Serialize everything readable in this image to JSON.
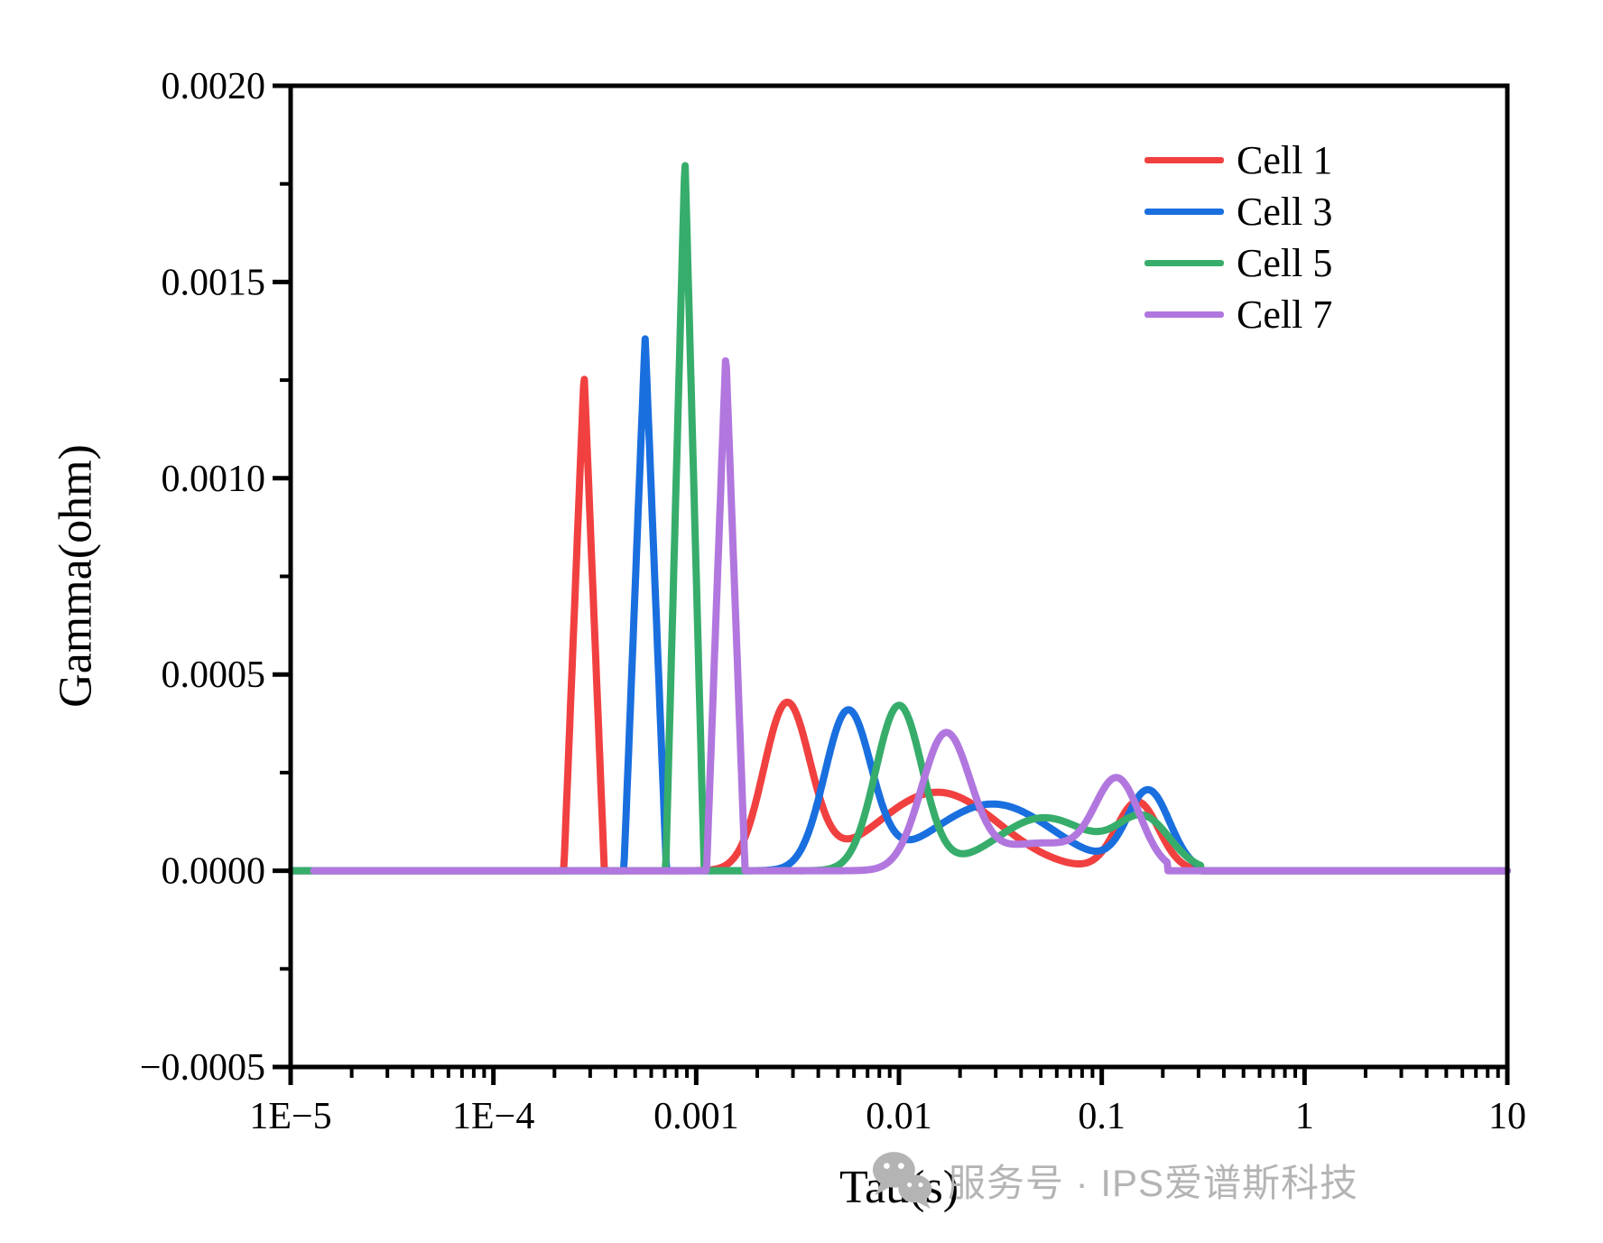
{
  "legend": {
    "items": [
      {
        "label": "Cell 1",
        "color": "#F14040"
      },
      {
        "label": "Cell 3",
        "color": "#1A6FDF"
      },
      {
        "label": "Cell 5",
        "color": "#37AD6B"
      },
      {
        "label": "Cell 7",
        "color": "#B177DE"
      }
    ]
  },
  "watermark": {
    "icon": "wechat-icon",
    "text": "服务号 · IPS爱谱斯科技",
    "color": "#b4b4b4"
  },
  "chart_data": {
    "type": "line",
    "title": "",
    "xlabel": "Tau(s)",
    "ylabel": "Gamma(ohm)",
    "xscale": "log",
    "xlim": [
      1e-05,
      10
    ],
    "ylim": [
      -0.0005,
      0.002
    ],
    "grid": false,
    "legend_position": "top-right",
    "x_ticks": [
      {
        "value": 1e-05,
        "label": "1E−5"
      },
      {
        "value": 0.0001,
        "label": "1E−4"
      },
      {
        "value": 0.001,
        "label": "0.001"
      },
      {
        "value": 0.01,
        "label": "0.01"
      },
      {
        "value": 0.1,
        "label": "0.1"
      },
      {
        "value": 1,
        "label": "1"
      },
      {
        "value": 10,
        "label": "10"
      }
    ],
    "y_ticks": [
      {
        "value": 0.002,
        "label": "0.0020"
      },
      {
        "value": 0.0015,
        "label": "0.0015"
      },
      {
        "value": 0.001,
        "label": "0.0010"
      },
      {
        "value": 0.0005,
        "label": "0.0005"
      },
      {
        "value": 0.0,
        "label": "0.0000"
      },
      {
        "value": -0.0005,
        "label": "−0.0005"
      }
    ],
    "y_minor_ticks": [
      0.00175,
      0.00125,
      0.00075,
      0.00025,
      -0.00025
    ],
    "series": [
      {
        "name": "Cell 1",
        "color": "#F14040",
        "domain": [
          1e-05,
          0.31
        ],
        "peaks": [
          {
            "tau": 0.00028,
            "gamma": 0.00127,
            "width": 0.1,
            "shape": "tent"
          },
          {
            "tau": 0.0028,
            "gamma": 0.00042,
            "width": 0.115,
            "shape": "gauss"
          },
          {
            "tau": 0.0155,
            "gamma": 0.0002,
            "width": 0.3,
            "shape": "gauss"
          },
          {
            "tau": 0.15,
            "gamma": 0.000175,
            "width": 0.105,
            "shape": "gauss"
          }
        ]
      },
      {
        "name": "Cell 3",
        "color": "#1A6FDF",
        "domain": [
          1e-05,
          0.31
        ],
        "peaks": [
          {
            "tau": 0.00056,
            "gamma": 0.00136,
            "width": 0.105,
            "shape": "tent"
          },
          {
            "tau": 0.0056,
            "gamma": 0.0004,
            "width": 0.115,
            "shape": "gauss"
          },
          {
            "tau": 0.029,
            "gamma": 0.00017,
            "width": 0.3,
            "shape": "gauss"
          },
          {
            "tau": 0.17,
            "gamma": 0.0002,
            "width": 0.105,
            "shape": "gauss"
          }
        ]
      },
      {
        "name": "Cell 5",
        "color": "#37AD6B",
        "domain": [
          1e-05,
          0.31
        ],
        "peaks": [
          {
            "tau": 0.00088,
            "gamma": 0.00182,
            "width": 0.095,
            "shape": "tent"
          },
          {
            "tau": 0.01,
            "gamma": 0.00042,
            "width": 0.115,
            "shape": "gauss"
          },
          {
            "tau": 0.052,
            "gamma": 0.000135,
            "width": 0.24,
            "shape": "gauss"
          },
          {
            "tau": 0.162,
            "gamma": 0.000125,
            "width": 0.13,
            "shape": "gauss"
          }
        ]
      },
      {
        "name": "Cell 7",
        "color": "#B177DE",
        "domain": [
          1.3e-05,
          0.212
        ],
        "peaks": [
          {
            "tau": 0.0014,
            "gamma": 0.00132,
            "width": 0.095,
            "shape": "tent"
          },
          {
            "tau": 0.017,
            "gamma": 0.00034,
            "width": 0.12,
            "shape": "gauss"
          },
          {
            "tau": 0.05,
            "gamma": 7e-05,
            "width": 0.25,
            "shape": "gauss"
          },
          {
            "tau": 0.12,
            "gamma": 0.000215,
            "width": 0.11,
            "shape": "gauss"
          }
        ]
      }
    ]
  }
}
